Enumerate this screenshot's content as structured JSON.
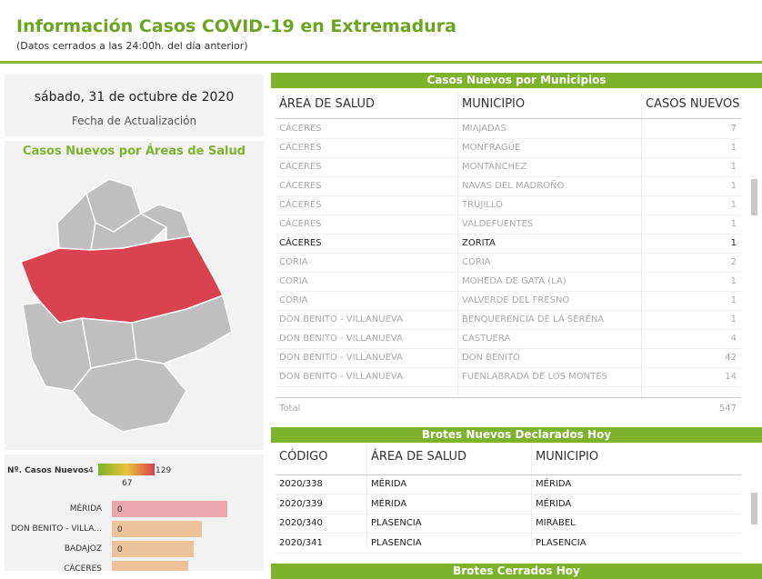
{
  "header": {
    "title": "Información Casos COVID-19 en Extremadura",
    "subtitle": "(Datos cerrados a las 24:00h. del día anterior)"
  },
  "date_card": {
    "date": "sábado, 31 de octubre de 2020",
    "label": "Fecha de Actualización"
  },
  "map": {
    "title": "Casos Nuevos por Áreas de Salud"
  },
  "legend": {
    "label": "Nº. Casos Nuevos",
    "min": "4",
    "mid": "67",
    "max": "129"
  },
  "area_bars": [
    {
      "name": "MÉRIDA",
      "label": "0"
    },
    {
      "name": "DON BENITO - VILLA...",
      "label": "0"
    },
    {
      "name": "BADAJOZ",
      "label": "0"
    },
    {
      "name": "CÁCERES",
      "label": ""
    }
  ],
  "municipios": {
    "title": "Casos Nuevos por Municipios",
    "columns": [
      "ÁREA DE SALUD",
      "MUNICIPIO",
      "CASOS NUEVOS"
    ],
    "rows": [
      [
        "CÁCERES",
        "MIAJADAS",
        7
      ],
      [
        "CÁCERES",
        "MONFRAGÜE",
        1
      ],
      [
        "CÁCERES",
        "MONTÁNCHEZ",
        1
      ],
      [
        "CÁCERES",
        "NAVAS DEL MADROÑO",
        1
      ],
      [
        "CÁCERES",
        "TRUJILLO",
        1
      ],
      [
        "CÁCERES",
        "VALDEFUENTES",
        1
      ],
      [
        "CÁCERES",
        "ZORITA",
        1
      ],
      [
        "CORIA",
        "CORIA",
        2
      ],
      [
        "CORIA",
        "MOHEDA DE GATA (LA)",
        1
      ],
      [
        "CORIA",
        "VALVERDE DEL FRESNO",
        1
      ],
      [
        "DON BENITO - VILLANUEVA",
        "BENQUERENCIA DE LA SERENA",
        1
      ],
      [
        "DON BENITO - VILLANUEVA",
        "CASTUERA",
        4
      ],
      [
        "DON BENITO - VILLANUEVA",
        "DON BENITO",
        42
      ],
      [
        "DON BENITO - VILLANUEVA",
        "FUENLABRADA DE LOS MONTES",
        14
      ]
    ],
    "total_label": "Total",
    "total": 547
  },
  "brotes_nuevos": {
    "title": "Brotes Nuevos Declarados Hoy",
    "columns": [
      "CÓDIGO",
      "ÁREA DE SALUD",
      "MUNICIPIO"
    ],
    "rows": [
      [
        "2020/338",
        "MÉRIDA",
        "MÉRIDA"
      ],
      [
        "2020/339",
        "MÉRIDA",
        "MÉRIDA"
      ],
      [
        "2020/340",
        "PLASENCIA",
        "MIRABEL"
      ],
      [
        "2020/341",
        "PLASENCIA",
        "PLASENCIA"
      ]
    ]
  },
  "brotes_cerrados": {
    "title": "Brotes Cerrados Hoy"
  }
}
